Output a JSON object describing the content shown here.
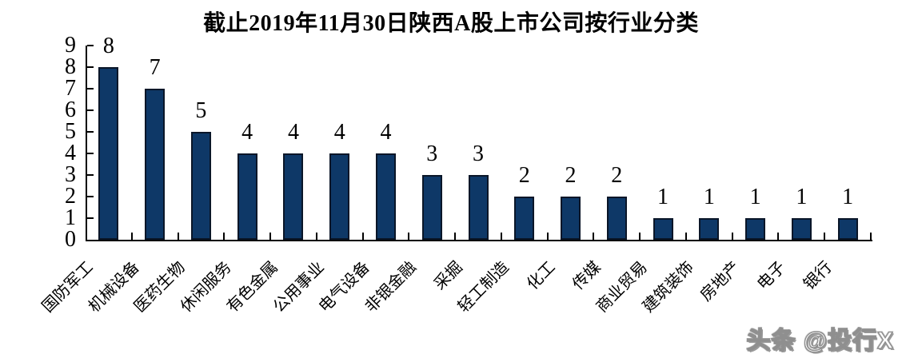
{
  "title": "截止2019年11月30日陕西A股上市公司按行业分类",
  "watermark": "头条 @投行X",
  "colors": {
    "bar_fill": "#0e3867",
    "bar_border": "#0a1628",
    "axis": "#000000",
    "text": "#000000",
    "background": "#ffffff",
    "watermark_fill": "#ffffff",
    "watermark_outline": "#8f8f8f"
  },
  "chart_data": {
    "type": "bar",
    "title": "截止2019年11月30日陕西A股上市公司按行业分类",
    "categories": [
      "国防军工",
      "机械设备",
      "医药生物",
      "休闲服务",
      "有色金属",
      "公用事业",
      "电气设备",
      "非银金融",
      "采掘",
      "轻工制造",
      "化工",
      "传媒",
      "商业贸易",
      "建筑装饰",
      "房地产",
      "电子",
      "银行"
    ],
    "values": [
      8,
      7,
      5,
      4,
      4,
      4,
      4,
      3,
      3,
      2,
      2,
      2,
      1,
      1,
      1,
      1,
      1
    ],
    "xlabel": "",
    "ylabel": "",
    "ylim": [
      0,
      9
    ],
    "yticks": [
      0,
      1,
      2,
      3,
      4,
      5,
      6,
      7,
      8,
      9
    ],
    "data_labels": true,
    "grid": false,
    "legend": false,
    "x_tick_label_rotation_deg": 45
  }
}
